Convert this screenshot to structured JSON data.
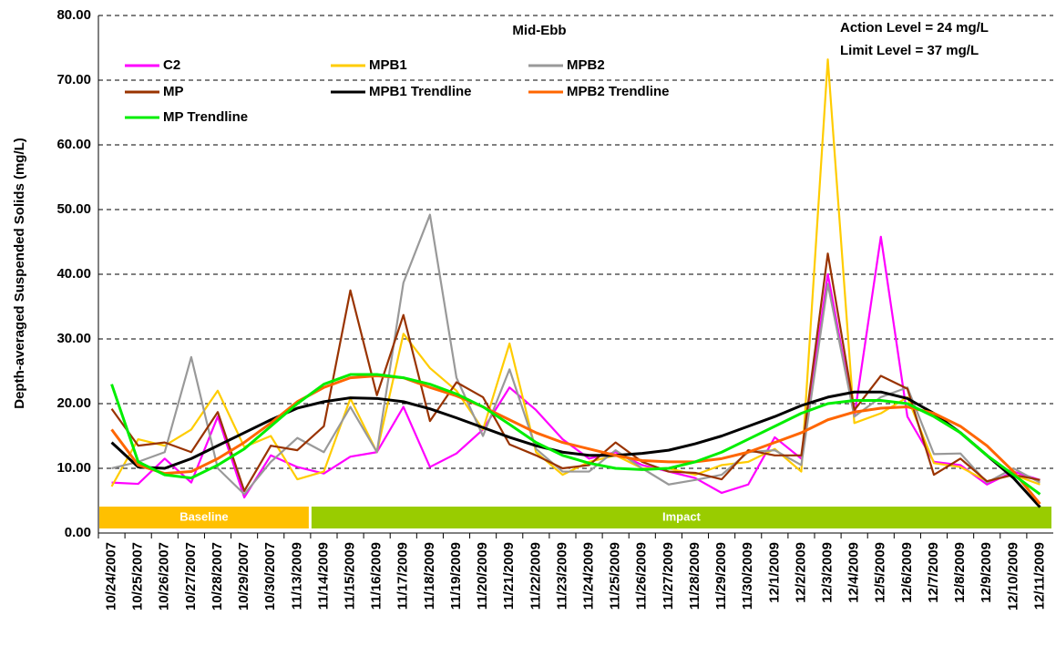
{
  "chart_data": {
    "type": "line",
    "title": "Mid-Ebb",
    "y_label": "Depth-averaged Suspended Solids (mg/L)",
    "annotations": [
      "Action Level = 24 mg/L",
      "Limit Level = 37 mg/L"
    ],
    "periods": [
      {
        "label": "Baseline",
        "color": "#ffc000",
        "start": "10/24/2007",
        "end": "11/13/2009"
      },
      {
        "label": "Impact",
        "color": "#99cc00",
        "start": "11/14/2009",
        "end": "12/11/2009"
      }
    ],
    "categories": [
      "10/24/2007",
      "10/25/2007",
      "10/26/2007",
      "10/27/2007",
      "10/28/2007",
      "10/29/2007",
      "10/30/2007",
      "11/13/2009",
      "11/14/2009",
      "11/15/2009",
      "11/16/2009",
      "11/17/2009",
      "11/18/2009",
      "11/19/2009",
      "11/20/2009",
      "11/21/2009",
      "11/22/2009",
      "11/23/2009",
      "11/24/2009",
      "11/25/2009",
      "11/26/2009",
      "11/27/2009",
      "11/28/2009",
      "11/29/2009",
      "11/30/2009",
      "12/1/2009",
      "12/2/2009",
      "12/3/2009",
      "12/4/2009",
      "12/5/2009",
      "12/6/2009",
      "12/7/2009",
      "12/8/2009",
      "12/9/2009",
      "12/10/2009",
      "12/11/2009"
    ],
    "series": [
      {
        "name": "C2",
        "color": "#ff00ff",
        "values": [
          7.8,
          7.6,
          11.5,
          7.8,
          18,
          5.5,
          12,
          10.2,
          9.2,
          11.8,
          12.5,
          19.5,
          10.2,
          12.3,
          16,
          22.5,
          19,
          14.5,
          11.5,
          12.5,
          10.5,
          9.5,
          8.5,
          6.2,
          7.5,
          14.8,
          11.5,
          40,
          18,
          45.8,
          18,
          11,
          10.5,
          7.5,
          9.5,
          8.2
        ]
      },
      {
        "name": "MPB1",
        "color": "#ffcc00",
        "values": [
          7.2,
          14.5,
          13.5,
          16,
          22,
          13.3,
          15,
          8.3,
          9.5,
          20.8,
          12.5,
          30.8,
          25.5,
          22,
          16,
          29.3,
          12.5,
          9,
          11,
          12,
          10,
          10,
          9,
          10.5,
          11,
          13,
          9.5,
          73.2,
          17,
          18.5,
          21,
          10.8,
          10.2,
          8,
          9,
          7.5
        ]
      },
      {
        "name": "MPB2",
        "color": "#999999",
        "values": [
          10,
          11,
          12.5,
          27.2,
          10,
          6,
          11,
          14.7,
          12.5,
          19.5,
          12.5,
          38.7,
          49.2,
          24,
          15,
          25.3,
          13,
          9.5,
          9.5,
          12.8,
          10,
          7.5,
          8.2,
          9,
          12.5,
          12.8,
          10.5,
          38.5,
          18,
          21,
          22.5,
          12.2,
          12.3,
          7.8,
          10,
          7.8
        ]
      },
      {
        "name": "MP",
        "color": "#993300",
        "values": [
          19.2,
          13.5,
          14,
          12.5,
          18.7,
          6.5,
          13.5,
          12.8,
          16.5,
          37.5,
          21.3,
          33.7,
          17.3,
          23.3,
          21,
          13.7,
          12,
          10,
          10.5,
          14,
          11,
          9.5,
          9.3,
          8.3,
          12.8,
          12,
          12,
          43.2,
          19,
          24.3,
          22.3,
          9,
          11.5,
          8,
          9,
          8.2
        ]
      },
      {
        "name": "MPB1 Trendline",
        "color": "#000000",
        "values": [
          14,
          10.2,
          10,
          11.5,
          13.5,
          15.5,
          17.5,
          19.3,
          20.3,
          20.9,
          20.8,
          20.3,
          19.2,
          17.8,
          16.3,
          14.8,
          13.5,
          12.5,
          12,
          12,
          12.3,
          12.8,
          13.8,
          15,
          16.5,
          18,
          19.7,
          21,
          21.8,
          21.8,
          20.8,
          18.5,
          15.5,
          12,
          8.5,
          4
        ]
      },
      {
        "name": "MPB2 Trendline",
        "color": "#ff6600",
        "values": [
          16,
          10.5,
          9.2,
          9.5,
          11.5,
          14,
          17,
          20.3,
          22.5,
          24,
          24.3,
          24,
          22.5,
          21.2,
          19.5,
          17.5,
          15.5,
          14,
          13,
          12,
          11.2,
          11,
          11,
          11.5,
          12.5,
          14,
          15.5,
          17.5,
          18.7,
          19.3,
          19.5,
          18.5,
          16.5,
          13.5,
          9.5,
          4.5
        ]
      },
      {
        "name": "MP Trendline",
        "color": "#00ee00",
        "values": [
          23,
          11,
          9,
          8.5,
          10.5,
          13,
          16.5,
          20,
          23,
          24.5,
          24.5,
          24,
          23,
          21.5,
          19.5,
          16.8,
          14,
          12,
          10.8,
          10,
          9.8,
          10,
          11,
          12.5,
          14.5,
          16.5,
          18.5,
          20,
          20.5,
          20.5,
          20,
          18,
          15.5,
          12,
          9,
          6
        ]
      }
    ],
    "ylim": [
      0,
      80
    ],
    "yticks": [
      {
        "value": 0,
        "label": "0.00"
      },
      {
        "value": 10,
        "label": "10.00"
      },
      {
        "value": 20,
        "label": "20.00"
      },
      {
        "value": 30,
        "label": "30.00"
      },
      {
        "value": 40,
        "label": "40.00"
      },
      {
        "value": 50,
        "label": "50.00"
      },
      {
        "value": 60,
        "label": "60.00"
      },
      {
        "value": 70,
        "label": "70.00"
      },
      {
        "value": 80,
        "label": "80.00"
      }
    ],
    "grid": true
  }
}
